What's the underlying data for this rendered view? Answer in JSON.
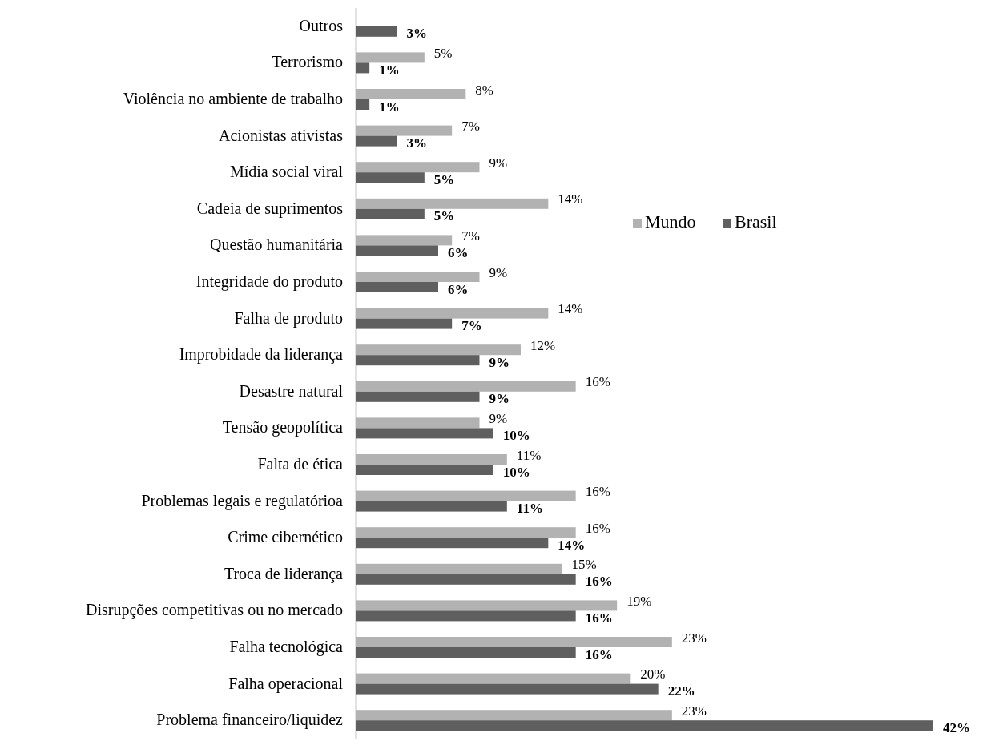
{
  "chart_data": {
    "type": "bar",
    "orientation": "horizontal",
    "categories": [
      "Outros",
      "Terrorismo",
      "Violência no ambiente de trabalho",
      "Acionistas ativistas",
      "Mídia social viral",
      "Cadeia de suprimentos",
      "Questão humanitária",
      "Integridade do produto",
      "Falha de produto",
      "Improbidade da liderança",
      "Desastre natural",
      "Tensão geopolítica",
      "Falta de ética",
      "Problemas legais e regulatórioa",
      "Crime cibernético",
      "Troca de liderança",
      "Disrupções competitivas ou no mercado",
      "Falha tecnológica",
      "Falha operacional",
      "Problema financeiro/liquidez"
    ],
    "series": [
      {
        "name": "Mundo",
        "color": "#b2b2b2",
        "values": [
          null,
          5,
          8,
          7,
          9,
          14,
          7,
          9,
          14,
          12,
          16,
          9,
          11,
          16,
          16,
          15,
          19,
          23,
          20,
          23
        ],
        "value_labels": [
          null,
          "5%",
          "8%",
          "7%",
          "9%",
          "14%",
          "7%",
          "9%",
          "14%",
          "12%",
          "16%",
          "9%",
          "11%",
          "16%",
          "16%",
          "15%",
          "19%",
          "23%",
          "20%",
          "23%"
        ]
      },
      {
        "name": "Brasil",
        "color": "#5f5f5f",
        "values": [
          3,
          1,
          1,
          3,
          5,
          5,
          6,
          6,
          7,
          9,
          9,
          10,
          10,
          11,
          14,
          16,
          16,
          16,
          22,
          42
        ],
        "value_labels": [
          "3%",
          "1%",
          "1%",
          "3%",
          "5%",
          "5%",
          "6%",
          "6%",
          "7%",
          "9%",
          "9%",
          "10%",
          "10%",
          "11%",
          "14%",
          "16%",
          "16%",
          "16%",
          "22%",
          "42%"
        ]
      }
    ],
    "legend": "right"
  }
}
